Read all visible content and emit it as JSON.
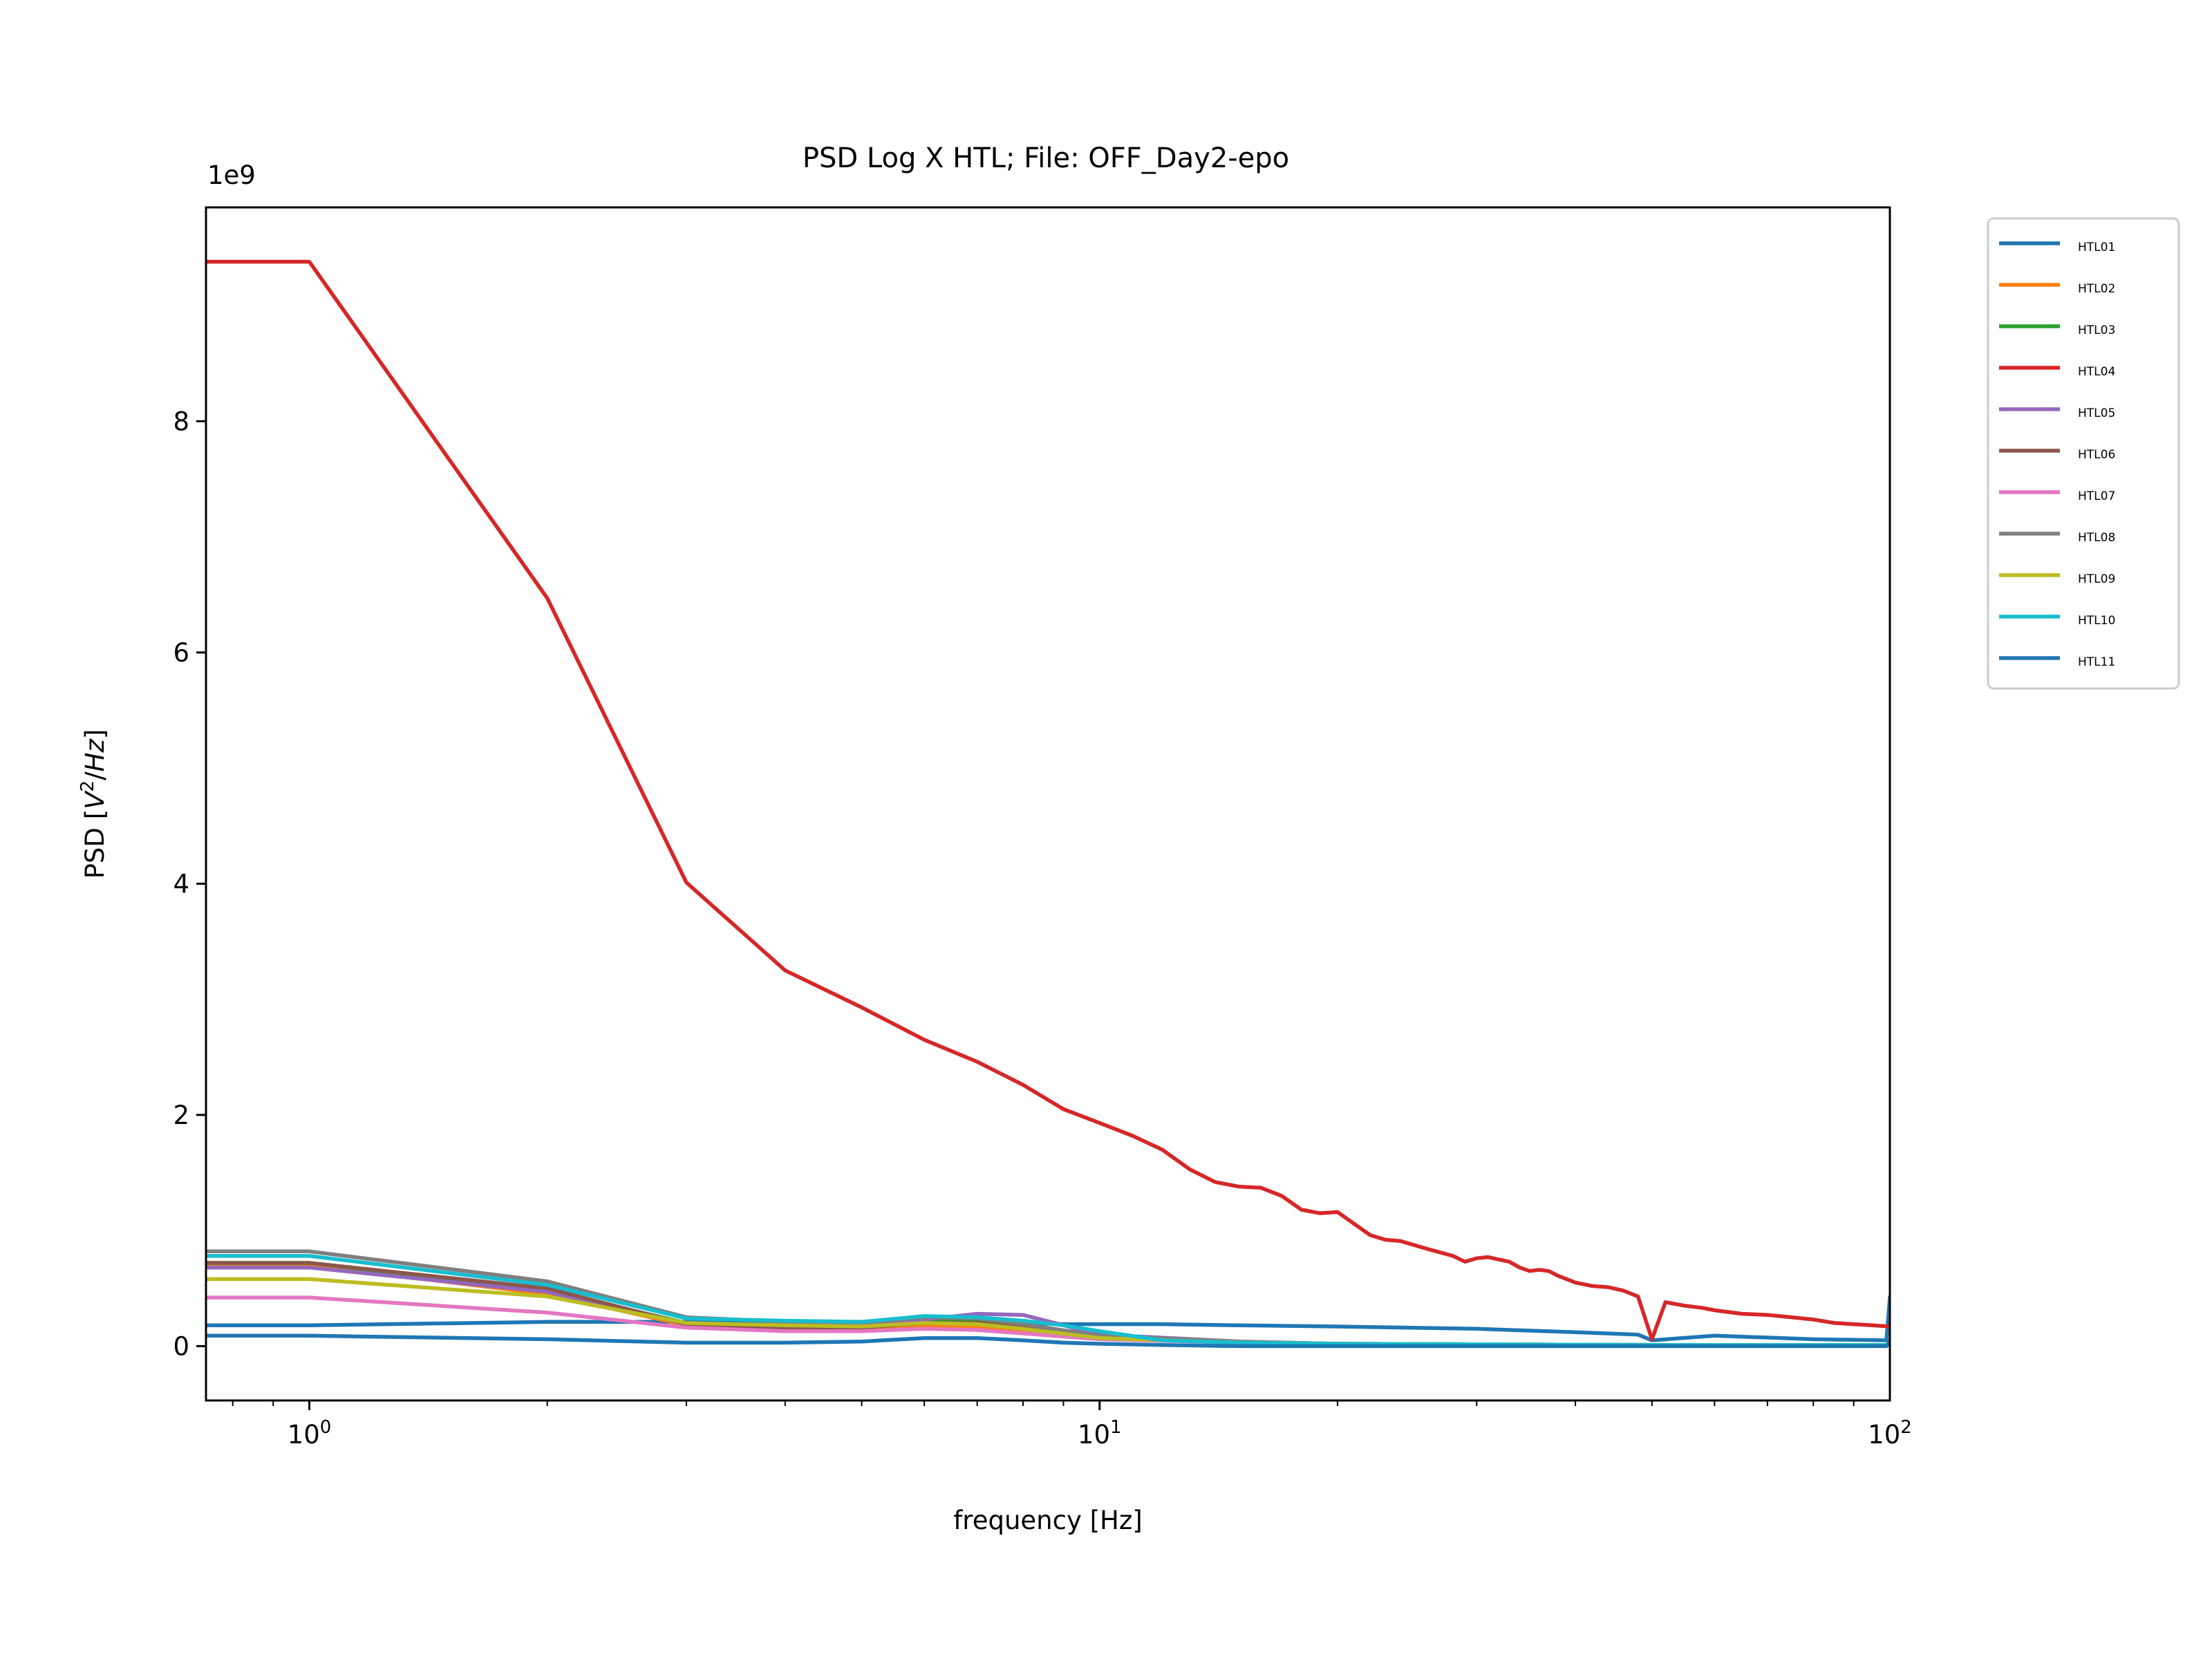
{
  "chart_data": {
    "type": "line",
    "title": "PSD Log X HTL; File: OFF_Day2-epo",
    "xlabel": "frequency [Hz]",
    "ylabel": "PSD [V²/Hz]",
    "y_offset_label": "1e9",
    "x_scale": "log",
    "xlim": [
      0.74,
      100
    ],
    "ylim": [
      -0.47,
      9.85
    ],
    "y_multiplier": 1000000000,
    "grid": false,
    "legend_position": "outside-right",
    "x_ticks": [
      {
        "value": 1,
        "label": "10",
        "exp": "0"
      },
      {
        "value": 10,
        "label": "10",
        "exp": "1"
      },
      {
        "value": 100,
        "label": "10",
        "exp": "2"
      }
    ],
    "y_ticks": [
      {
        "value": 0,
        "label": "0"
      },
      {
        "value": 2,
        "label": "2"
      },
      {
        "value": 4,
        "label": "4"
      },
      {
        "value": 6,
        "label": "6"
      },
      {
        "value": 8,
        "label": "8"
      }
    ],
    "series": [
      {
        "name": "HTL01",
        "color": "#1f77b4",
        "x": [
          0.74,
          1,
          2,
          3,
          4,
          5,
          6,
          7,
          8,
          9,
          10,
          12,
          15,
          20,
          30,
          40,
          48,
          50,
          60,
          80,
          99,
          100
        ],
        "y": [
          0.18,
          0.18,
          0.21,
          0.21,
          0.2,
          0.19,
          0.21,
          0.21,
          0.2,
          0.19,
          0.19,
          0.19,
          0.18,
          0.17,
          0.15,
          0.12,
          0.1,
          0.05,
          0.09,
          0.06,
          0.05,
          0.42
        ]
      },
      {
        "name": "HTL02",
        "color": "#ff7f0e",
        "x": [
          0.74,
          1,
          2,
          3,
          4,
          5,
          6,
          7,
          8,
          10,
          15,
          20,
          50,
          100
        ],
        "y": [
          0.7,
          0.7,
          0.45,
          0.18,
          0.14,
          0.15,
          0.17,
          0.16,
          0.12,
          0.07,
          0.03,
          0.02,
          0.01,
          0.01
        ]
      },
      {
        "name": "HTL03",
        "color": "#2ca02c",
        "x": [
          0.74,
          1,
          2,
          3,
          4,
          5,
          6,
          7,
          8,
          10,
          15,
          20,
          50,
          100
        ],
        "y": [
          0.72,
          0.72,
          0.48,
          0.2,
          0.17,
          0.18,
          0.22,
          0.22,
          0.16,
          0.08,
          0.03,
          0.02,
          0.01,
          0.01
        ]
      },
      {
        "name": "HTL04",
        "color": "#d62728",
        "x": [
          0.74,
          1,
          2,
          3,
          4,
          5,
          6,
          7,
          8,
          9,
          10,
          11,
          12,
          13,
          14,
          15,
          16,
          17,
          18,
          19,
          20,
          22,
          23,
          24,
          26,
          28,
          29,
          30,
          31,
          33,
          34,
          35,
          36,
          37,
          38,
          40,
          42,
          44,
          46,
          48,
          50,
          52,
          55,
          58,
          60,
          65,
          70,
          75,
          80,
          85,
          90,
          95,
          100
        ],
        "y": [
          9.38,
          9.38,
          6.47,
          4.01,
          3.25,
          2.93,
          2.65,
          2.46,
          2.26,
          2.05,
          1.93,
          1.82,
          1.7,
          1.53,
          1.42,
          1.38,
          1.37,
          1.3,
          1.18,
          1.15,
          1.16,
          0.96,
          0.92,
          0.91,
          0.84,
          0.78,
          0.73,
          0.76,
          0.77,
          0.73,
          0.68,
          0.65,
          0.66,
          0.65,
          0.61,
          0.55,
          0.52,
          0.51,
          0.48,
          0.43,
          0.06,
          0.38,
          0.35,
          0.33,
          0.31,
          0.28,
          0.27,
          0.25,
          0.23,
          0.2,
          0.19,
          0.18,
          0.17
        ]
      },
      {
        "name": "HTL05",
        "color": "#9467bd",
        "x": [
          0.74,
          1,
          2,
          3,
          4,
          5,
          6,
          7,
          8,
          10,
          15,
          20,
          50,
          100
        ],
        "y": [
          0.68,
          0.68,
          0.47,
          0.19,
          0.17,
          0.17,
          0.23,
          0.28,
          0.27,
          0.1,
          0.04,
          0.02,
          0.01,
          0.01
        ]
      },
      {
        "name": "HTL06",
        "color": "#8c564b",
        "x": [
          0.74,
          1,
          2,
          3,
          4,
          5,
          6,
          7,
          8,
          10,
          15,
          20,
          50,
          100
        ],
        "y": [
          0.72,
          0.72,
          0.5,
          0.19,
          0.16,
          0.16,
          0.2,
          0.2,
          0.16,
          0.08,
          0.03,
          0.02,
          0.01,
          0.01
        ]
      },
      {
        "name": "HTL07",
        "color": "#e377c2",
        "x": [
          0.74,
          1,
          2,
          3,
          4,
          5,
          6,
          7,
          8,
          10,
          15,
          20,
          50,
          100
        ],
        "y": [
          0.42,
          0.42,
          0.29,
          0.16,
          0.13,
          0.13,
          0.15,
          0.14,
          0.11,
          0.06,
          0.03,
          0.02,
          0.01,
          0.01
        ]
      },
      {
        "name": "HTL08",
        "color": "#7f7f7f",
        "x": [
          0.74,
          1,
          2,
          3,
          4,
          5,
          6,
          7,
          8,
          10,
          15,
          20,
          50,
          100
        ],
        "y": [
          0.82,
          0.82,
          0.56,
          0.25,
          0.21,
          0.2,
          0.25,
          0.24,
          0.19,
          0.09,
          0.04,
          0.02,
          0.01,
          0.01
        ]
      },
      {
        "name": "HTL09",
        "color": "#bcbd22",
        "x": [
          0.74,
          1,
          2,
          3,
          4,
          5,
          6,
          7,
          8,
          10,
          15,
          20,
          50,
          100
        ],
        "y": [
          0.58,
          0.58,
          0.43,
          0.2,
          0.18,
          0.17,
          0.2,
          0.19,
          0.15,
          0.07,
          0.03,
          0.02,
          0.01,
          0.01
        ]
      },
      {
        "name": "HTL10",
        "color": "#17becf",
        "x": [
          0.74,
          1,
          2,
          3,
          4,
          5,
          6,
          7,
          8,
          9,
          10,
          12,
          15,
          20,
          50,
          100
        ],
        "y": [
          0.78,
          0.78,
          0.53,
          0.24,
          0.22,
          0.21,
          0.26,
          0.25,
          0.22,
          0.18,
          0.13,
          0.05,
          0.03,
          0.02,
          0.01,
          0.01
        ]
      },
      {
        "name": "HTL11",
        "color": "#1f77b4",
        "x": [
          0.74,
          1,
          2,
          3,
          4,
          5,
          6,
          7,
          8,
          9,
          10,
          12,
          15,
          20,
          30,
          50,
          99,
          100
        ],
        "y": [
          0.09,
          0.09,
          0.06,
          0.03,
          0.03,
          0.04,
          0.07,
          0.07,
          0.05,
          0.03,
          0.02,
          0.01,
          0.0,
          0.0,
          0.0,
          0.0,
          0.0,
          0.05
        ]
      }
    ]
  }
}
